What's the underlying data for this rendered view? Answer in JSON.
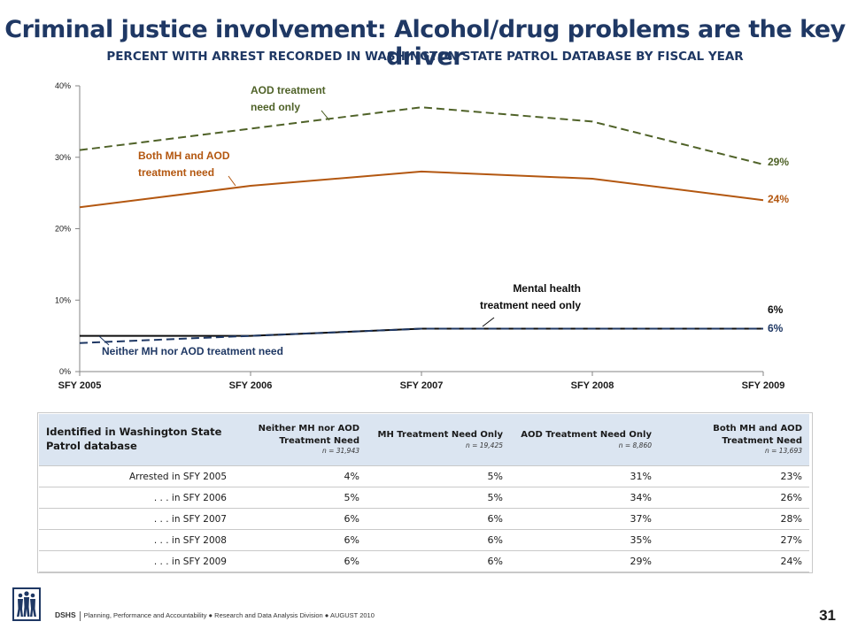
{
  "header": {
    "title": "Criminal justice involvement: Alcohol/drug problems are the key driver",
    "subtitle": "PERCENT WITH ARREST RECORDED IN WASHINGTON STATE PATROL DATABASE BY FISCAL YEAR"
  },
  "chart_data": {
    "type": "line",
    "title": "",
    "xlabel": "",
    "ylabel": "",
    "categories": [
      "SFY 2005",
      "SFY 2006",
      "SFY 2007",
      "SFY 2008",
      "SFY 2009"
    ],
    "ylim": [
      0,
      40
    ],
    "yticks": [
      "0%",
      "10%",
      "20%",
      "30%",
      "40%"
    ],
    "grid": false,
    "series": [
      {
        "name": "AOD treatment need only",
        "label_lines": [
          "AOD treatment",
          "need only"
        ],
        "values": [
          31,
          34,
          37,
          35,
          29
        ],
        "end_label": "29%",
        "color": "#4f6228",
        "style": "dashed"
      },
      {
        "name": "Both MH and AOD treatment need",
        "label_lines": [
          "Both MH and AOD",
          "treatment need"
        ],
        "values": [
          23,
          26,
          28,
          27,
          24
        ],
        "end_label": "24%",
        "color": "#b35710",
        "style": "solid"
      },
      {
        "name": "Mental health treatment need only",
        "label_lines": [
          "Mental health",
          "treatment need only"
        ],
        "values": [
          5,
          5,
          6,
          6,
          6
        ],
        "end_label": "6%",
        "color": "#0d0d0d",
        "style": "solid"
      },
      {
        "name": "Neither MH nor AOD treatment need",
        "label_lines": [
          "Neither MH nor AOD treatment need"
        ],
        "values": [
          4,
          5,
          6,
          6,
          6
        ],
        "end_label": "6%",
        "color": "#1f3864",
        "style": "dashed"
      }
    ]
  },
  "table": {
    "corner_label": "Identified in Washington State Patrol database",
    "columns": [
      {
        "label": "Neither MH nor AOD Treatment Need",
        "n": "n = 31,943"
      },
      {
        "label": "MH Treatment Need Only",
        "n": "n = 19,425"
      },
      {
        "label": "AOD Treatment Need Only",
        "n": "n = 8,860"
      },
      {
        "label": "Both MH and AOD Treatment Need",
        "n": "n = 13,693"
      }
    ],
    "rows": [
      {
        "label": "Arrested in SFY 2005",
        "values": [
          "4%",
          "5%",
          "31%",
          "23%"
        ]
      },
      {
        "label": ". . . in SFY 2006",
        "values": [
          "5%",
          "5%",
          "34%",
          "26%"
        ]
      },
      {
        "label": ". . . in SFY 2007",
        "values": [
          "6%",
          "6%",
          "37%",
          "28%"
        ]
      },
      {
        "label": ". . . in SFY 2008",
        "values": [
          "6%",
          "6%",
          "35%",
          "27%"
        ]
      },
      {
        "label": ". . . in SFY 2009",
        "values": [
          "6%",
          "6%",
          "29%",
          "24%"
        ]
      }
    ]
  },
  "footer": {
    "org": "DSHS",
    "text": "Planning, Performance and Accountability ● Research and Data Analysis Division ● AUGUST 2010",
    "page_number": "31"
  },
  "logo": {
    "icon": "dshs-people-logo-icon",
    "color": "#1f3864"
  }
}
